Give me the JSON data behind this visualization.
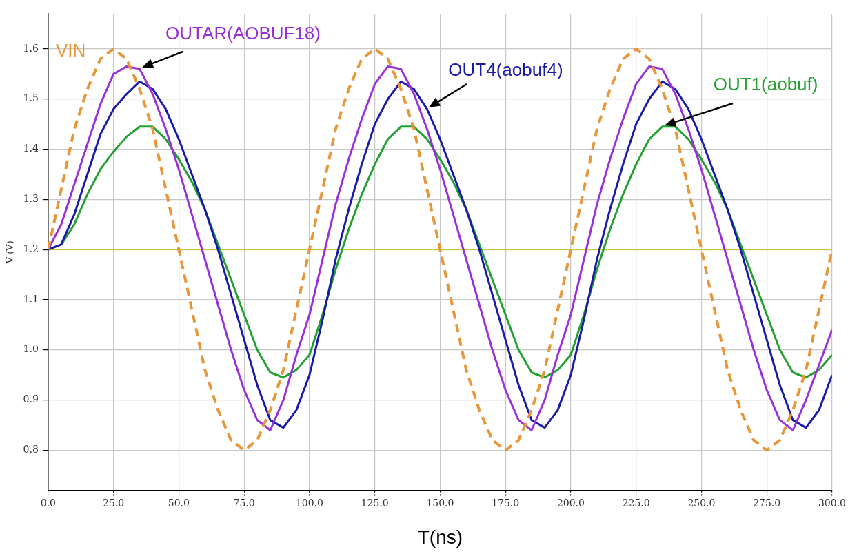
{
  "chart_data": {
    "type": "line",
    "xlabel": "T(ns)",
    "ylabel": "V (V)",
    "x": [
      0,
      5,
      10,
      15,
      20,
      25,
      30,
      35,
      40,
      45,
      50,
      55,
      60,
      65,
      70,
      75,
      80,
      85,
      90,
      95,
      100,
      105,
      110,
      115,
      120,
      125,
      130,
      135,
      140,
      145,
      150,
      155,
      160,
      165,
      170,
      175,
      180,
      185,
      190,
      195,
      200,
      205,
      210,
      215,
      220,
      225,
      230,
      235,
      240,
      245,
      250,
      255,
      260,
      265,
      270,
      275,
      280,
      285,
      290,
      295,
      300
    ],
    "series": [
      {
        "name": "VIN",
        "color": "#e8963a",
        "line_style": "dashed",
        "values": [
          1.2,
          1.32,
          1.44,
          1.52,
          1.58,
          1.6,
          1.58,
          1.52,
          1.44,
          1.32,
          1.2,
          1.08,
          0.96,
          0.88,
          0.82,
          0.8,
          0.82,
          0.88,
          0.96,
          1.08,
          1.2,
          1.32,
          1.44,
          1.52,
          1.58,
          1.6,
          1.58,
          1.52,
          1.44,
          1.32,
          1.2,
          1.08,
          0.96,
          0.88,
          0.82,
          0.8,
          0.82,
          0.88,
          0.96,
          1.08,
          1.2,
          1.32,
          1.44,
          1.52,
          1.58,
          1.6,
          1.58,
          1.52,
          1.44,
          1.32,
          1.2,
          1.08,
          0.96,
          0.88,
          0.82,
          0.8,
          0.82,
          0.88,
          0.96,
          1.08,
          1.2
        ]
      },
      {
        "name": "OUTAR(AOBUF18)",
        "color": "#9b30d9",
        "values": [
          1.2,
          1.25,
          1.33,
          1.41,
          1.49,
          1.55,
          1.565,
          1.56,
          1.51,
          1.44,
          1.36,
          1.27,
          1.18,
          1.09,
          1.0,
          0.92,
          0.86,
          0.84,
          0.9,
          0.99,
          1.07,
          1.18,
          1.29,
          1.38,
          1.46,
          1.53,
          1.565,
          1.56,
          1.51,
          1.44,
          1.36,
          1.27,
          1.18,
          1.09,
          1.0,
          0.92,
          0.86,
          0.84,
          0.9,
          0.99,
          1.07,
          1.18,
          1.29,
          1.38,
          1.46,
          1.53,
          1.565,
          1.56,
          1.51,
          1.44,
          1.36,
          1.27,
          1.18,
          1.09,
          1.0,
          0.92,
          0.86,
          0.84,
          0.9,
          0.97,
          1.04
        ]
      },
      {
        "name": "OUT4(aobuf4)",
        "color": "#1a1aaa",
        "values": [
          1.2,
          1.21,
          1.27,
          1.35,
          1.43,
          1.48,
          1.51,
          1.535,
          1.52,
          1.48,
          1.42,
          1.35,
          1.28,
          1.2,
          1.11,
          1.02,
          0.93,
          0.86,
          0.845,
          0.88,
          0.95,
          1.06,
          1.18,
          1.28,
          1.37,
          1.45,
          1.5,
          1.535,
          1.52,
          1.48,
          1.42,
          1.35,
          1.28,
          1.2,
          1.11,
          1.02,
          0.93,
          0.86,
          0.845,
          0.88,
          0.95,
          1.06,
          1.18,
          1.28,
          1.37,
          1.45,
          1.5,
          1.535,
          1.52,
          1.48,
          1.42,
          1.35,
          1.28,
          1.2,
          1.11,
          1.02,
          0.93,
          0.86,
          0.845,
          0.88,
          0.95
        ]
      },
      {
        "name": "OUT1(aobuf)",
        "color": "#22a030",
        "values": [
          1.2,
          1.21,
          1.25,
          1.31,
          1.36,
          1.395,
          1.425,
          1.445,
          1.445,
          1.42,
          1.38,
          1.335,
          1.28,
          1.21,
          1.14,
          1.07,
          1.0,
          0.955,
          0.945,
          0.96,
          0.99,
          1.07,
          1.16,
          1.24,
          1.31,
          1.37,
          1.42,
          1.445,
          1.445,
          1.42,
          1.38,
          1.335,
          1.28,
          1.21,
          1.14,
          1.07,
          1.0,
          0.955,
          0.945,
          0.96,
          0.99,
          1.07,
          1.16,
          1.24,
          1.31,
          1.37,
          1.42,
          1.445,
          1.445,
          1.42,
          1.38,
          1.335,
          1.28,
          1.21,
          1.14,
          1.07,
          1.0,
          0.955,
          0.945,
          0.96,
          0.99
        ]
      }
    ],
    "xlim": [
      0,
      300
    ],
    "ylim": [
      0.72,
      1.67
    ],
    "xticks": [
      {
        "value": 0,
        "label": "0.0"
      },
      {
        "value": 25,
        "label": "25.0"
      },
      {
        "value": 50,
        "label": "50.0"
      },
      {
        "value": 75,
        "label": "75.0"
      },
      {
        "value": 100,
        "label": "100.0"
      },
      {
        "value": 125,
        "label": "125.0"
      },
      {
        "value": 150,
        "label": "150.0"
      },
      {
        "value": 175,
        "label": "175.0"
      },
      {
        "value": 200,
        "label": "200.0"
      },
      {
        "value": 225,
        "label": "225.0"
      },
      {
        "value": 250,
        "label": "250.0"
      },
      {
        "value": 275,
        "label": "275.0"
      },
      {
        "value": 300,
        "label": "300.0"
      }
    ],
    "yticks": [
      0.8,
      0.9,
      {
        "value": 1,
        "label": "1.0"
      },
      1.1,
      1.2,
      1.3,
      1.4,
      1.5,
      1.6
    ],
    "ref_lines": [
      {
        "axis": "y",
        "value": 1.2,
        "color": "#c8c832"
      }
    ],
    "grid": true,
    "legend": false,
    "marker": "none"
  }
}
